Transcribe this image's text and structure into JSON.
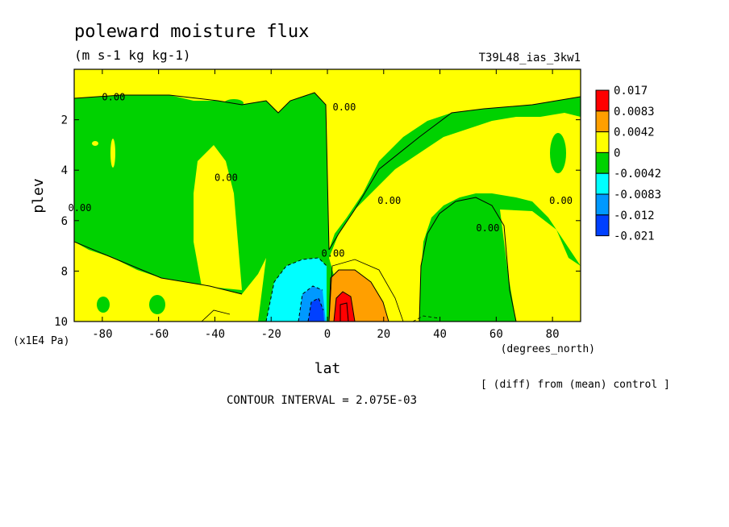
{
  "chart_data": {
    "type": "heatmap",
    "title": "poleward moisture flux",
    "subtitle": "(m s-1 kg kg-1)",
    "experiment_label": "T39L48_ias_3kw1",
    "xlabel": "lat",
    "xunits": "(degrees_north)",
    "ylabel": "plev",
    "yunits": "(x1E4 Pa)",
    "xlim": [
      -90,
      90
    ],
    "ylim": [
      0,
      10
    ],
    "y_inverted": true,
    "x_ticks": [
      -80,
      -60,
      -40,
      -20,
      0,
      20,
      40,
      60,
      80
    ],
    "y_ticks": [
      2,
      4,
      6,
      8,
      10
    ],
    "diff_note": "[ (diff) from (mean) control ]",
    "contour_interval_text": "CONTOUR INTERVAL = 2.075E-03",
    "contour_labels": [
      {
        "text": "0.00",
        "lat": -76,
        "plev": 1.1
      },
      {
        "text": "0.00",
        "lat": -88,
        "plev": 5.5
      },
      {
        "text": "0.00",
        "lat": -36,
        "plev": 4.3
      },
      {
        "text": "0.00",
        "lat": 6,
        "plev": 1.5
      },
      {
        "text": "0.00",
        "lat": 2,
        "plev": 7.3
      },
      {
        "text": "0.00",
        "lat": 22,
        "plev": 5.2
      },
      {
        "text": "0.00",
        "lat": 57,
        "plev": 6.3
      },
      {
        "text": "0.00",
        "lat": 83,
        "plev": 5.2
      }
    ],
    "legend": {
      "placement": "right",
      "colors": [
        "#ff0000",
        "#ff9f00",
        "#ffff00",
        "#00d200",
        "#00ffff",
        "#0099ff",
        "#0040ff"
      ],
      "labels": [
        "0.017",
        "0.0083",
        "0.0042",
        "0",
        "-0.0042",
        "-0.0083",
        "-0.012",
        "-0.021"
      ]
    },
    "colors": {
      "positive_low": "#ffff00",
      "negative_low": "#00d200",
      "positive_mid": "#ff9f00",
      "positive_high": "#ff0000",
      "negative_mid": "#00ffff",
      "negative_high": "#0099ff",
      "negative_max": "#0040ff"
    }
  }
}
